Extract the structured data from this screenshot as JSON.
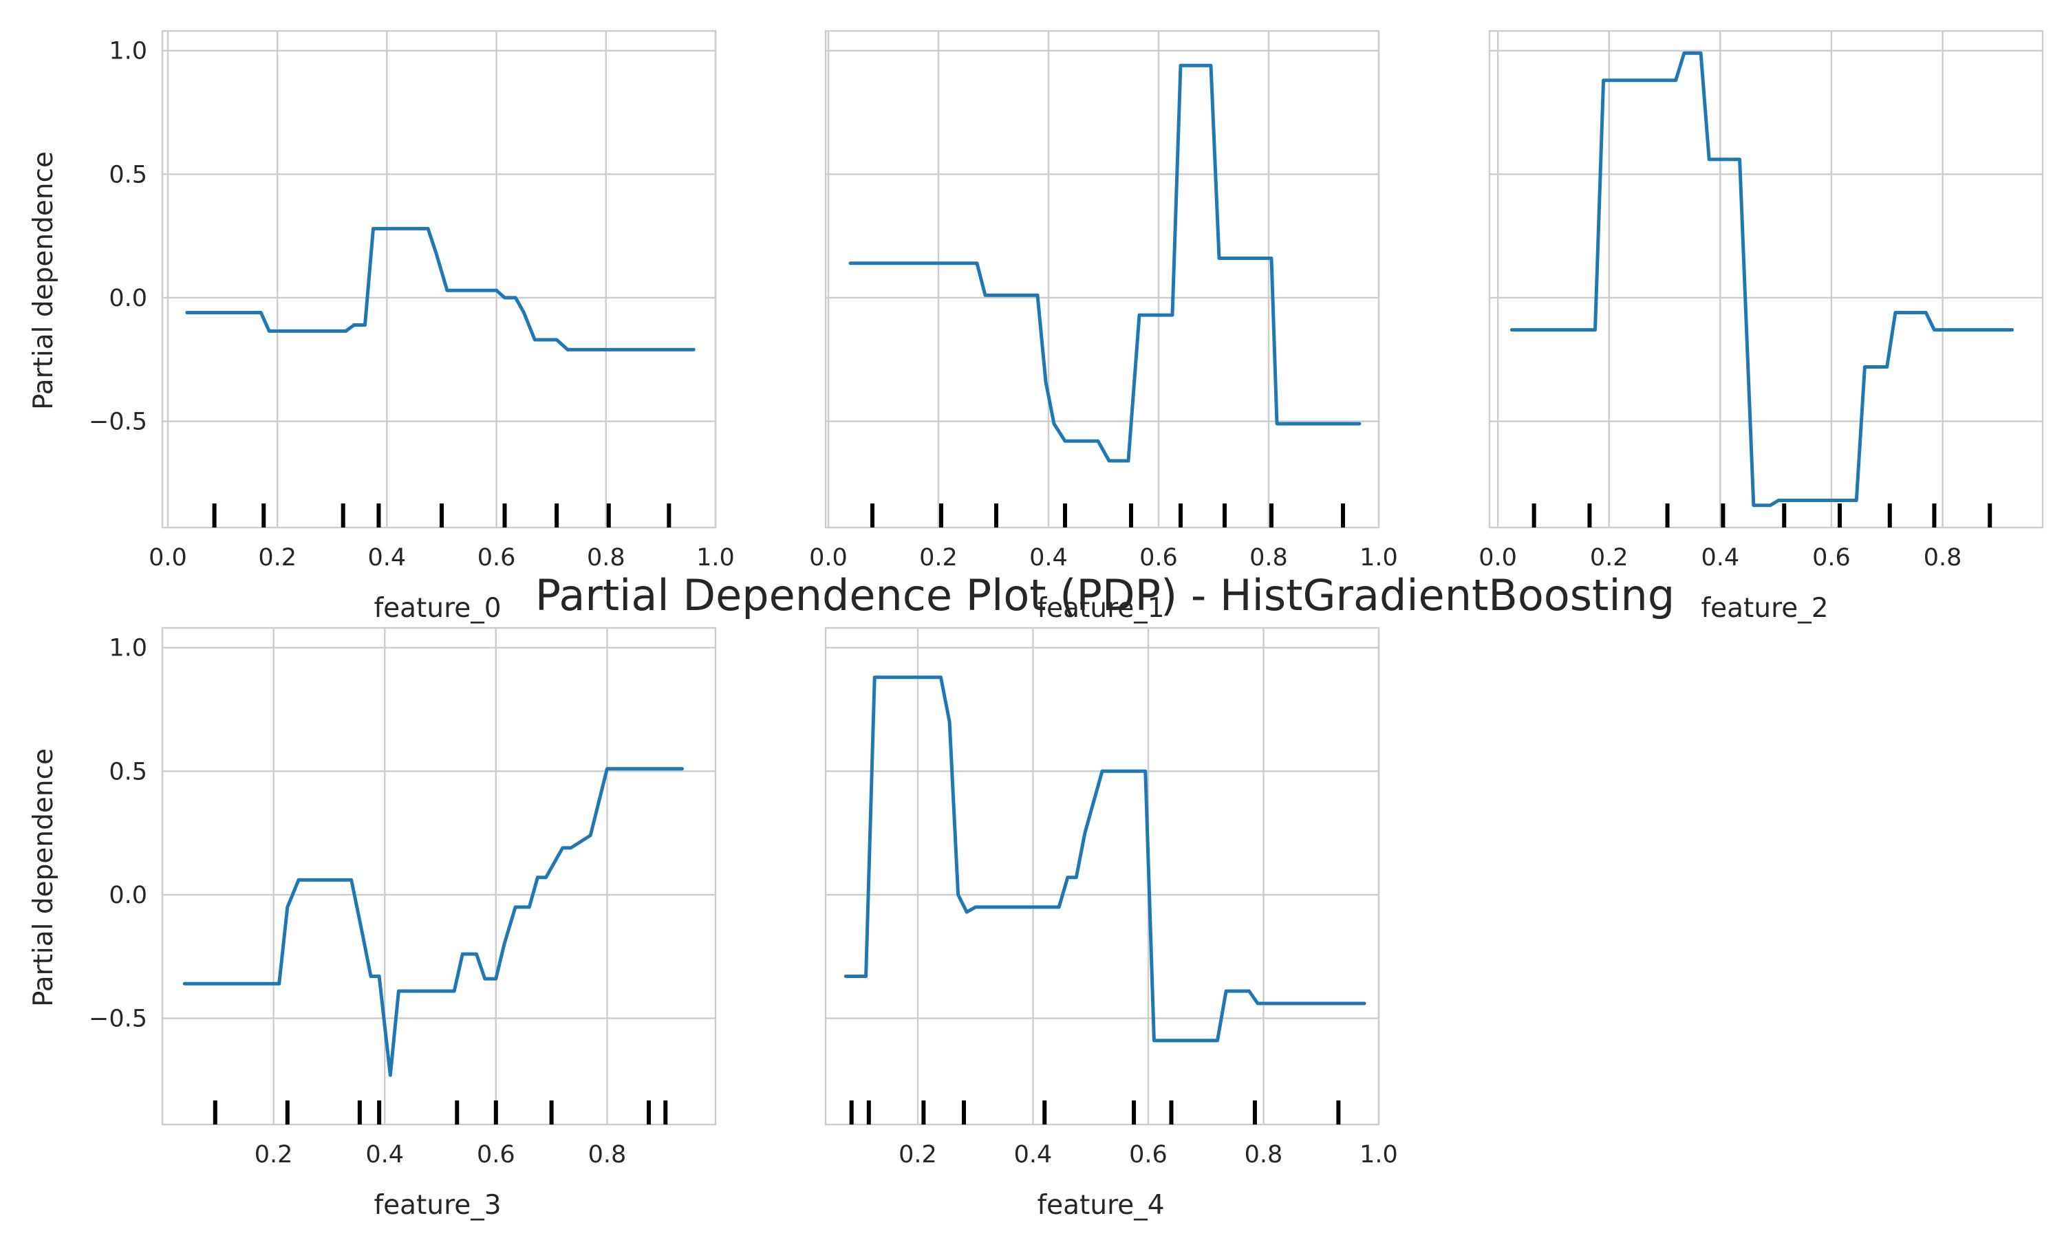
{
  "figure": {
    "title": "Partial Dependence Plot (PDP) - HistGradientBoosting",
    "line_color": "#1f77b4",
    "grid_color": "#cccccc",
    "spine_color": "#cccccc",
    "rug_color": "#000000"
  },
  "chart_data": [
    {
      "type": "line",
      "xlabel": "feature_0",
      "ylabel": "Partial dependence",
      "xlim": [
        -0.01,
        1.0
      ],
      "ylim": [
        -0.93,
        1.08
      ],
      "xticks": [
        0.0,
        0.2,
        0.4,
        0.6,
        0.8,
        1.0
      ],
      "xtick_labels": [
        "0.0",
        "0.2",
        "0.4",
        "0.6",
        "0.8",
        "1.0"
      ],
      "yticks": [
        1.0,
        0.5,
        0.0,
        -0.5
      ],
      "ytick_labels": [
        "1.0",
        "0.5",
        "0.0",
        "−0.5"
      ],
      "show_yticklabels": true,
      "grid": true,
      "x": [
        0.035,
        0.17,
        0.185,
        0.325,
        0.34,
        0.36,
        0.375,
        0.475,
        0.49,
        0.51,
        0.6,
        0.615,
        0.635,
        0.65,
        0.67,
        0.71,
        0.73,
        0.96
      ],
      "y": [
        -0.06,
        -0.06,
        -0.135,
        -0.135,
        -0.11,
        -0.11,
        0.28,
        0.28,
        0.18,
        0.03,
        0.03,
        0.0,
        0.0,
        -0.06,
        -0.17,
        -0.17,
        -0.21,
        -0.21
      ],
      "rug": [
        0.085,
        0.175,
        0.32,
        0.385,
        0.5,
        0.615,
        0.71,
        0.805,
        0.915
      ]
    },
    {
      "type": "line",
      "xlabel": "feature_1",
      "ylabel": "",
      "xlim": [
        -0.005,
        1.0
      ],
      "ylim": [
        -0.93,
        1.08
      ],
      "xticks": [
        0.0,
        0.2,
        0.4,
        0.6,
        0.8,
        1.0
      ],
      "xtick_labels": [
        "0.0",
        "0.2",
        "0.4",
        "0.6",
        "0.8",
        "1.0"
      ],
      "yticks": [
        1.0,
        0.5,
        0.0,
        -0.5
      ],
      "ytick_labels": [
        "1.0",
        "0.5",
        "0.0",
        "−0.5"
      ],
      "show_yticklabels": false,
      "grid": true,
      "x": [
        0.04,
        0.27,
        0.285,
        0.38,
        0.395,
        0.41,
        0.43,
        0.49,
        0.51,
        0.545,
        0.565,
        0.625,
        0.64,
        0.695,
        0.71,
        0.805,
        0.815,
        0.965
      ],
      "y": [
        0.14,
        0.14,
        0.01,
        0.01,
        -0.34,
        -0.51,
        -0.58,
        -0.58,
        -0.66,
        -0.66,
        -0.07,
        -0.07,
        0.94,
        0.94,
        0.16,
        0.16,
        -0.51,
        -0.51
      ],
      "rug": [
        0.08,
        0.205,
        0.305,
        0.43,
        0.55,
        0.64,
        0.72,
        0.805,
        0.935
      ]
    },
    {
      "type": "line",
      "xlabel": "feature_2",
      "ylabel": "",
      "xlim": [
        -0.015,
        0.98
      ],
      "ylim": [
        -0.93,
        1.08
      ],
      "xticks": [
        0.0,
        0.2,
        0.4,
        0.6,
        0.8
      ],
      "xtick_labels": [
        "0.0",
        "0.2",
        "0.4",
        "0.6",
        "0.8"
      ],
      "yticks": [
        1.0,
        0.5,
        0.0,
        -0.5
      ],
      "ytick_labels": [
        "1.0",
        "0.5",
        "0.0",
        "−0.5"
      ],
      "show_yticklabels": false,
      "grid": true,
      "x": [
        0.025,
        0.175,
        0.19,
        0.32,
        0.335,
        0.365,
        0.38,
        0.435,
        0.46,
        0.49,
        0.505,
        0.645,
        0.66,
        0.7,
        0.715,
        0.77,
        0.785,
        0.925
      ],
      "y": [
        -0.13,
        -0.13,
        0.88,
        0.88,
        0.99,
        0.99,
        0.56,
        0.56,
        -0.84,
        -0.84,
        -0.82,
        -0.82,
        -0.28,
        -0.28,
        -0.06,
        -0.06,
        -0.13,
        -0.13
      ],
      "rug": [
        0.065,
        0.165,
        0.305,
        0.405,
        0.515,
        0.615,
        0.705,
        0.785,
        0.885
      ]
    },
    {
      "type": "line",
      "xlabel": "feature_3",
      "ylabel": "Partial dependence",
      "xlim": [
        -0.0,
        1.0
      ],
      "ylim": [
        -0.93,
        1.08
      ],
      "xticks": [
        0.2,
        0.4,
        0.6,
        0.8
      ],
      "xtick_labels": [
        "0.2",
        "0.4",
        "0.6",
        "0.8"
      ],
      "yticks": [
        1.0,
        0.5,
        0.0,
        -0.5
      ],
      "ytick_labels": [
        "1.0",
        "0.5",
        "0.0",
        "−0.5"
      ],
      "show_yticklabels": true,
      "grid": true,
      "xlim_override": [
        0.0,
        0.98
      ],
      "x": [
        0.04,
        0.21,
        0.225,
        0.245,
        0.34,
        0.36,
        0.375,
        0.39,
        0.41,
        0.425,
        0.525,
        0.54,
        0.565,
        0.58,
        0.6,
        0.615,
        0.635,
        0.66,
        0.675,
        0.69,
        0.72,
        0.735,
        0.77,
        0.8,
        0.82,
        0.84,
        0.935
      ],
      "y": [
        -0.36,
        -0.36,
        -0.05,
        0.06,
        0.06,
        -0.16,
        -0.33,
        -0.33,
        -0.73,
        -0.39,
        -0.39,
        -0.24,
        -0.24,
        -0.34,
        -0.34,
        -0.2,
        -0.05,
        -0.05,
        0.07,
        0.07,
        0.19,
        0.19,
        0.24,
        0.51,
        0.51,
        0.51,
        0.51
      ],
      "rug": [
        0.095,
        0.225,
        0.355,
        0.39,
        0.53,
        0.6,
        0.7,
        0.875,
        0.905
      ]
    },
    {
      "type": "line",
      "xlabel": "feature_4",
      "ylabel": "",
      "xlim": [
        0.04,
        1.0
      ],
      "ylim": [
        -0.93,
        1.08
      ],
      "xticks": [
        0.2,
        0.4,
        0.6,
        0.8,
        1.0
      ],
      "xtick_labels": [
        "0.2",
        "0.4",
        "0.6",
        "0.8",
        "1.0"
      ],
      "yticks": [
        1.0,
        0.5,
        0.0,
        -0.5
      ],
      "ytick_labels": [
        "1.0",
        "0.5",
        "0.0",
        "−0.5"
      ],
      "show_yticklabels": false,
      "grid": true,
      "x": [
        0.075,
        0.11,
        0.125,
        0.24,
        0.255,
        0.27,
        0.285,
        0.3,
        0.445,
        0.46,
        0.475,
        0.49,
        0.52,
        0.595,
        0.61,
        0.72,
        0.735,
        0.775,
        0.79,
        0.975
      ],
      "y": [
        -0.33,
        -0.33,
        0.88,
        0.88,
        0.7,
        0.0,
        -0.07,
        -0.05,
        -0.05,
        0.07,
        0.07,
        0.25,
        0.5,
        0.5,
        -0.59,
        -0.59,
        -0.39,
        -0.39,
        -0.44,
        -0.44
      ],
      "rug": [
        0.085,
        0.115,
        0.21,
        0.28,
        0.42,
        0.575,
        0.64,
        0.785,
        0.93
      ]
    }
  ]
}
